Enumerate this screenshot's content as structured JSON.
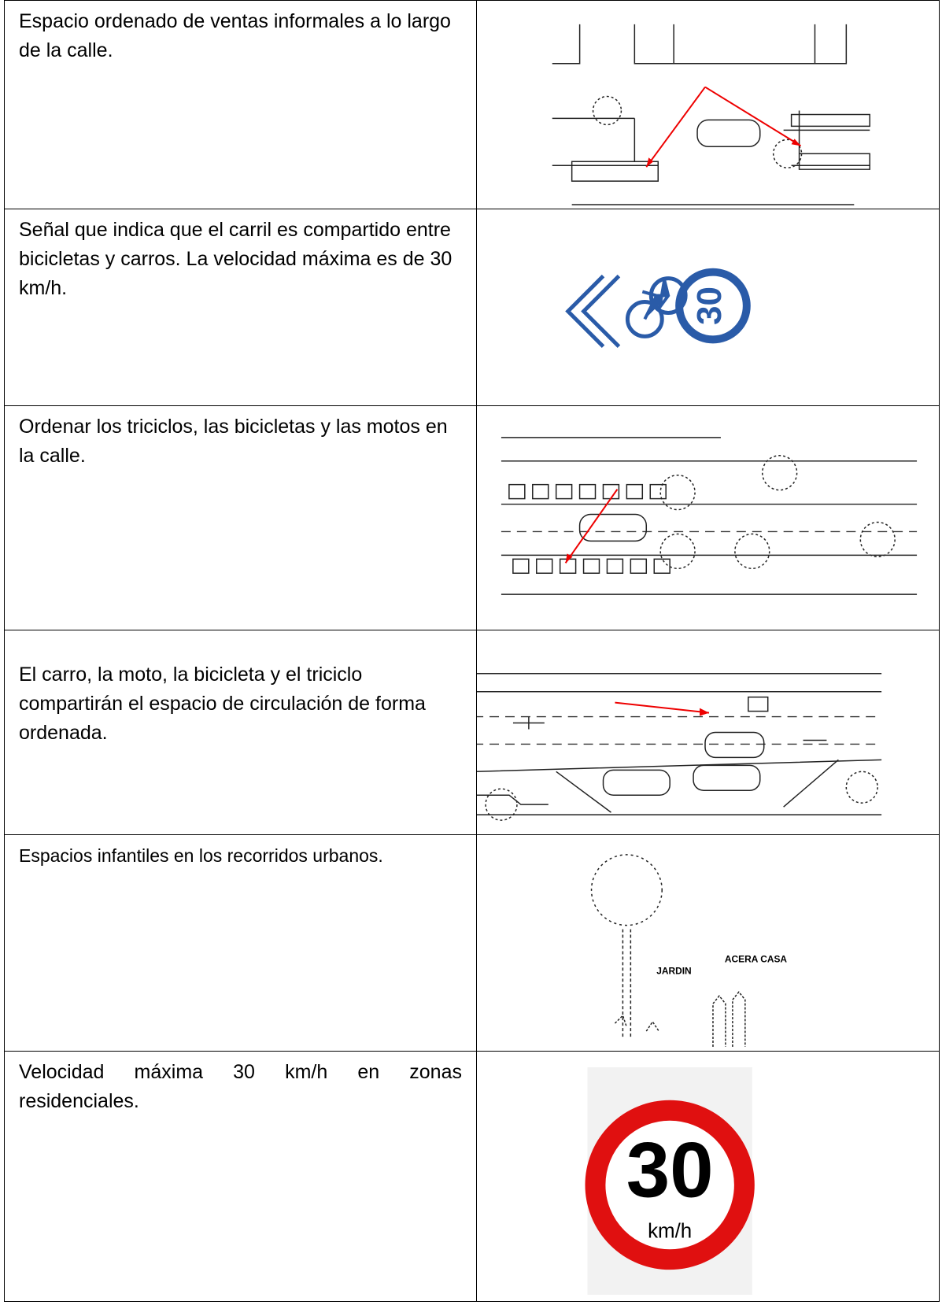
{
  "rows": [
    {
      "text": "Espacio ordenado de ventas informales a lo largo de la calle."
    },
    {
      "text": "Señal que indica que el carril es compartido entre bicicletas y carros. La velocidad máxima es de 30 km/h.",
      "sign": "30"
    },
    {
      "text": "Ordenar los triciclos, las bicicletas y las motos en la calle."
    },
    {
      "text": "El carro, la moto, la bicicleta y el triciclo compartirán el espacio de circulación de forma ordenada."
    },
    {
      "text": "Espacios infantiles en los recorridos urbanos.",
      "labels": [
        "JARDIN",
        "ACERA CASA"
      ]
    },
    {
      "text": "Velocidad máxima 30 km/h en zonas residenciales.",
      "sign": [
        "30",
        "km/h"
      ]
    }
  ]
}
